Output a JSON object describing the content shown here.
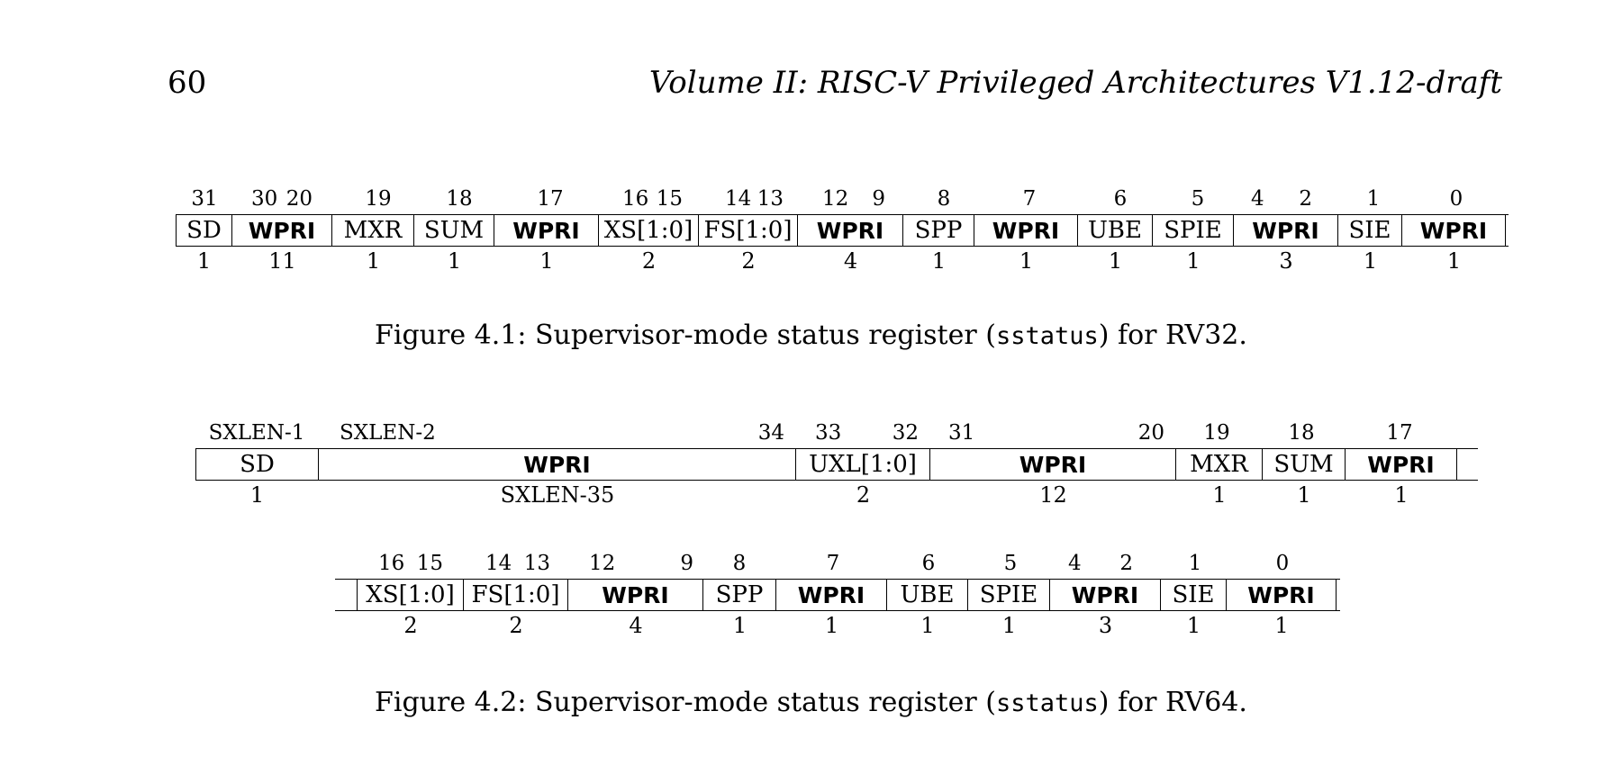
{
  "header": {
    "page_number": "60",
    "running_title": "Volume II: RISC-V Privileged Architectures V1.12-draft"
  },
  "fig1": {
    "bit_labels": [
      "31",
      "30",
      "20",
      "19",
      "18",
      "17",
      "16",
      "15",
      "14",
      "13",
      "12",
      "9",
      "8",
      "7",
      "6",
      "5",
      "4",
      "2",
      "1",
      "0"
    ],
    "fields": [
      "SD",
      "WPRI",
      "MXR",
      "SUM",
      "WPRI",
      "XS[1:0]",
      "FS[1:0]",
      "WPRI",
      "SPP",
      "WPRI",
      "UBE",
      "SPIE",
      "WPRI",
      "SIE",
      "WPRI"
    ],
    "widths": [
      "1",
      "11",
      "1",
      "1",
      "1",
      "2",
      "2",
      "4",
      "1",
      "1",
      "1",
      "1",
      "3",
      "1",
      "1"
    ],
    "caption_pre": "Figure 4.1: Supervisor-mode status register (",
    "caption_code": "sstatus",
    "caption_post": ") for RV32."
  },
  "fig2": {
    "row1_bit_labels": [
      "SXLEN-1",
      "SXLEN-2",
      "34",
      "33",
      "32",
      "31",
      "20",
      "19",
      "18",
      "17"
    ],
    "row1_fields": [
      "SD",
      "WPRI",
      "UXL[1:0]",
      "WPRI",
      "MXR",
      "SUM",
      "WPRI"
    ],
    "row1_widths": [
      "1",
      "SXLEN-35",
      "2",
      "12",
      "1",
      "1",
      "1"
    ],
    "row2_bit_labels": [
      "16",
      "15",
      "14",
      "13",
      "12",
      "9",
      "8",
      "7",
      "6",
      "5",
      "4",
      "2",
      "1",
      "0"
    ],
    "row2_fields": [
      "XS[1:0]",
      "FS[1:0]",
      "WPRI",
      "SPP",
      "WPRI",
      "UBE",
      "SPIE",
      "WPRI",
      "SIE",
      "WPRI"
    ],
    "row2_widths": [
      "2",
      "2",
      "4",
      "1",
      "1",
      "1",
      "1",
      "3",
      "1",
      "1"
    ],
    "caption_pre": "Figure 4.2: Supervisor-mode status register (",
    "caption_code": "sstatus",
    "caption_post": ") for RV64."
  }
}
